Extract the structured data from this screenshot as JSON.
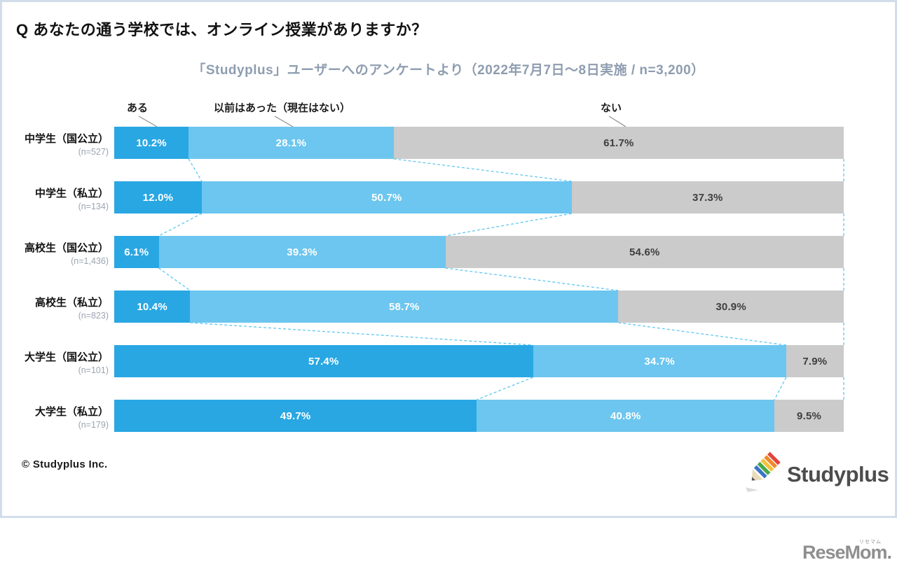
{
  "page": {
    "title": "Q あなたの通う学校では、オンライン授業がありますか？",
    "subtitle": "「Studyplus」ユーザーへのアンケートより（2022年7月7日～8日実施 / n=3,200）",
    "copyright": "© Studyplus Inc.",
    "studyplus_logo_text": "Studyplus",
    "resemom_logo_text": "ReseMom.",
    "resemom_logo_ruby": "リセマム"
  },
  "chart_data": {
    "type": "bar",
    "orientation": "horizontal",
    "stacked": true,
    "unit": "%",
    "xlim": [
      0,
      100
    ],
    "legend_position": "top",
    "grid": false,
    "categories": [
      "中学生（国公立）",
      "中学生（私立）",
      "高校生（国公立）",
      "高校生（私立）",
      "大学生（国公立）",
      "大学生（私立）"
    ],
    "sample_sizes": [
      "(n=527)",
      "(n=134)",
      "(n=1,436)",
      "(n=823)",
      "(n=101)",
      "(n=179)"
    ],
    "series": [
      {
        "name": "ある",
        "color": "#29A7E3",
        "label_color": "#ffffff",
        "values": [
          10.2,
          12.0,
          6.1,
          10.4,
          57.4,
          49.7
        ]
      },
      {
        "name": "以前はあった（現在はない）",
        "color": "#6CC6EF",
        "label_color": "#ffffff",
        "values": [
          28.1,
          50.7,
          39.3,
          58.7,
          34.7,
          40.8
        ]
      },
      {
        "name": "ない",
        "color": "#CBCBCB",
        "label_color": "#3F3F3F",
        "values": [
          61.7,
          37.3,
          54.6,
          30.9,
          7.9,
          9.5
        ]
      }
    ],
    "value_label_format": "{value}%"
  },
  "colors": {
    "card_border": "#D2DDEC",
    "subtitle_text": "#8E9DAF",
    "connector_dashed": "#5FC7F0",
    "legend_pointer": "#8F8F8F",
    "pencil_stripes": [
      "#E2453C",
      "#F0882D",
      "#F3C13A",
      "#47A847",
      "#3B76C6"
    ],
    "pencil_wood": "#EADBBB",
    "pencil_tip": "#555555",
    "pencil_shadow": "#DCDCDC"
  }
}
